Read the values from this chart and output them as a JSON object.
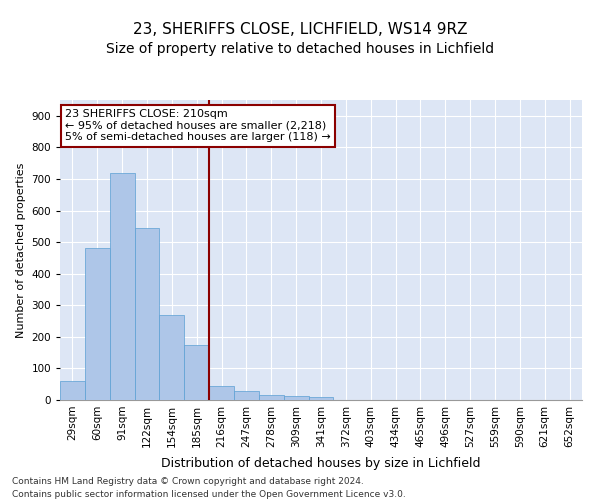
{
  "title1": "23, SHERIFFS CLOSE, LICHFIELD, WS14 9RZ",
  "title2": "Size of property relative to detached houses in Lichfield",
  "xlabel": "Distribution of detached houses by size in Lichfield",
  "ylabel": "Number of detached properties",
  "categories": [
    "29sqm",
    "60sqm",
    "91sqm",
    "122sqm",
    "154sqm",
    "185sqm",
    "216sqm",
    "247sqm",
    "278sqm",
    "309sqm",
    "341sqm",
    "372sqm",
    "403sqm",
    "434sqm",
    "465sqm",
    "496sqm",
    "527sqm",
    "559sqm",
    "590sqm",
    "621sqm",
    "652sqm"
  ],
  "values": [
    60,
    480,
    720,
    545,
    270,
    175,
    45,
    30,
    15,
    13,
    8,
    0,
    0,
    0,
    0,
    0,
    0,
    0,
    0,
    0,
    0
  ],
  "bar_color": "#aec6e8",
  "bar_edge_color": "#5a9fd4",
  "vline_color": "#8b0000",
  "vline_x_index": 6,
  "annotation_line1": "23 SHERIFFS CLOSE: 210sqm",
  "annotation_line2": "← 95% of detached houses are smaller (2,218)",
  "annotation_line3": "5% of semi-detached houses are larger (118) →",
  "annotation_box_color": "#8b0000",
  "ylim": [
    0,
    950
  ],
  "yticks": [
    0,
    100,
    200,
    300,
    400,
    500,
    600,
    700,
    800,
    900
  ],
  "bg_color": "#dde6f5",
  "footnote1": "Contains HM Land Registry data © Crown copyright and database right 2024.",
  "footnote2": "Contains public sector information licensed under the Open Government Licence v3.0.",
  "title1_fontsize": 11,
  "title2_fontsize": 10,
  "xlabel_fontsize": 9,
  "ylabel_fontsize": 8,
  "tick_fontsize": 7.5,
  "annot_fontsize": 8
}
